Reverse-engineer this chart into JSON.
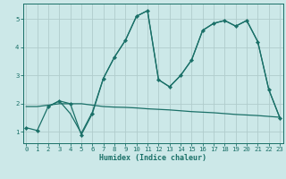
{
  "xlabel": "Humidex (Indice chaleur)",
  "bg_color": "#cce8e8",
  "line_color": "#1a7068",
  "grid_color": "#b0cccc",
  "x_ticks": [
    0,
    1,
    2,
    3,
    4,
    5,
    6,
    7,
    8,
    9,
    10,
    11,
    12,
    13,
    14,
    15,
    16,
    17,
    18,
    19,
    20,
    21,
    22,
    23
  ],
  "y_ticks": [
    1,
    2,
    3,
    4,
    5
  ],
  "xlim": [
    -0.3,
    23.3
  ],
  "ylim": [
    0.6,
    5.55
  ],
  "line1_x": [
    0,
    1,
    2,
    3,
    4,
    5,
    6,
    7,
    8,
    9,
    10,
    11,
    12,
    13,
    14,
    15,
    16,
    17,
    18,
    19,
    20,
    21,
    22,
    23
  ],
  "line1_y": [
    1.15,
    1.05,
    1.9,
    2.1,
    2.0,
    0.9,
    1.65,
    2.9,
    3.65,
    4.25,
    5.1,
    5.3,
    2.85,
    2.6,
    3.0,
    3.55,
    4.6,
    4.85,
    4.95,
    4.75,
    4.95,
    4.2,
    2.5,
    1.5
  ],
  "line2_x": [
    0,
    1,
    2,
    3,
    4,
    5,
    6,
    7,
    8,
    9,
    10,
    11,
    12,
    13,
    14,
    15,
    16,
    17,
    18,
    19,
    20,
    21,
    22,
    23
  ],
  "line2_y": [
    1.9,
    1.9,
    1.95,
    2.0,
    2.0,
    2.0,
    1.95,
    1.9,
    1.88,
    1.87,
    1.85,
    1.82,
    1.8,
    1.78,
    1.75,
    1.72,
    1.7,
    1.68,
    1.65,
    1.62,
    1.6,
    1.58,
    1.55,
    1.52
  ],
  "line3_x": [
    2,
    3,
    4,
    5,
    6,
    7,
    8,
    9,
    10,
    11,
    12,
    13,
    14,
    15,
    16,
    17,
    18,
    19,
    20,
    21,
    22,
    23
  ],
  "line3_y": [
    1.9,
    2.1,
    1.65,
    0.95,
    1.7,
    2.9,
    3.65,
    4.25,
    5.1,
    5.3,
    2.85,
    2.6,
    3.0,
    3.55,
    4.6,
    4.85,
    4.95,
    4.75,
    4.95,
    4.2,
    2.5,
    1.5
  ]
}
